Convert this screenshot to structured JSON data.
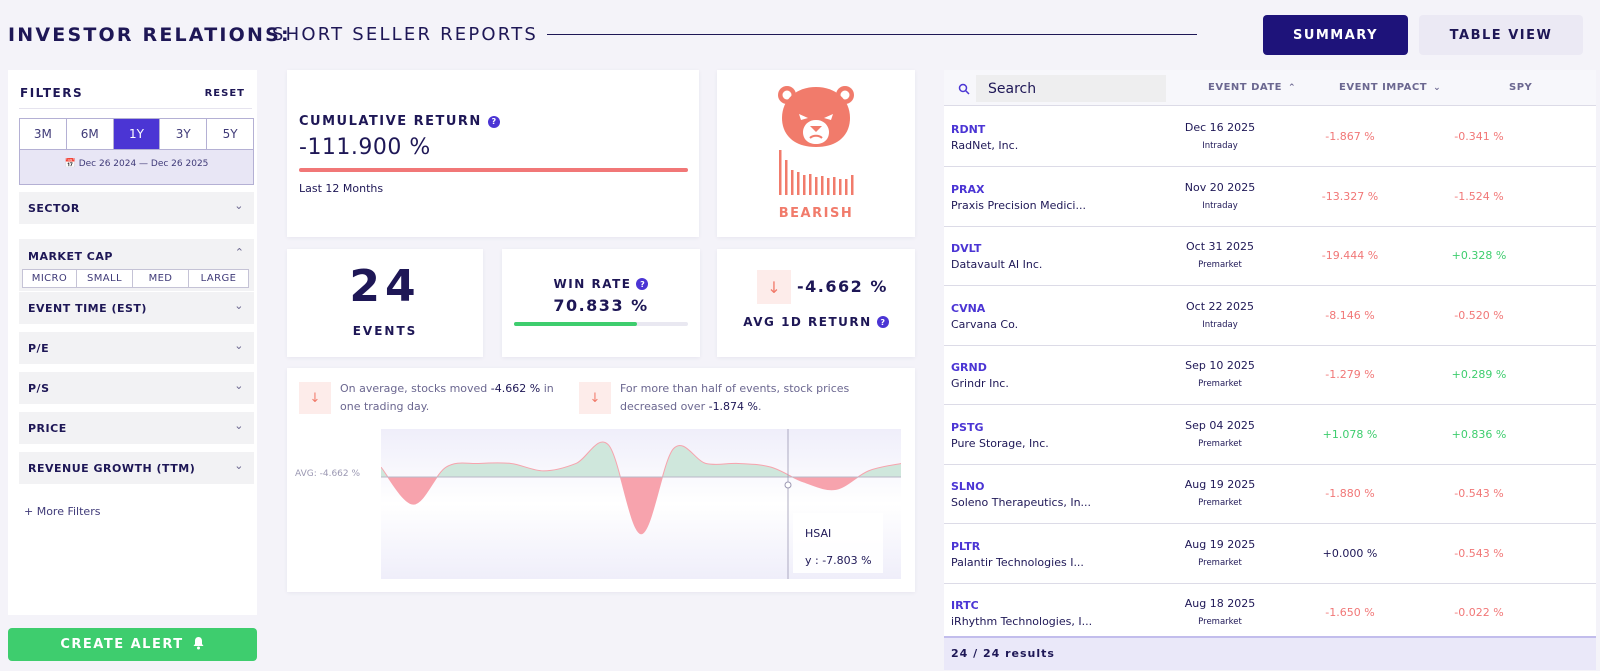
{
  "header": {
    "title": "INVESTOR RELATIONS:",
    "subtitle": "SHORT SELLER REPORTS",
    "summary_btn": "SUMMARY",
    "table_btn": "TABLE VIEW"
  },
  "filters": {
    "title": "FILTERS",
    "reset": "RESET",
    "periods": [
      "3M",
      "6M",
      "1Y",
      "3Y",
      "5Y"
    ],
    "active_period": "1Y",
    "date_range": "Dec 26 2024 — Dec 26 2025",
    "sector": "SECTOR",
    "market_cap": "MARKET CAP",
    "market_cap_options": [
      "MICRO",
      "SMALL",
      "MED",
      "LARGE"
    ],
    "event_time": "EVENT TIME (EST)",
    "pe": "P/E",
    "ps": "P/S",
    "price": "PRICE",
    "revenue_growth": "REVENUE GROWTH (TTM)",
    "more": "+ More Filters",
    "create_alert": "CREATE ALERT"
  },
  "cumulative": {
    "title": "CUMULATIVE RETURN",
    "value": "-111.900 %",
    "sub": "Last 12 Months"
  },
  "sentiment": {
    "label": "BEARISH",
    "color": "#f17b6b"
  },
  "events": {
    "count": "24",
    "label": "EVENTS"
  },
  "win_rate": {
    "title": "WIN RATE",
    "value": "70.833 %",
    "fraction": 0.70833
  },
  "avg_return": {
    "value": "-4.662 %",
    "label": "AVG 1D RETURN"
  },
  "insights": {
    "i1_pre": "On average, stocks moved ",
    "i1_val": "-4.662 %",
    "i1_post": " in one trading day.",
    "i2_pre": "For more than half of events, stock prices decreased over ",
    "i2_val": "-1.874 %",
    "i2_post": "."
  },
  "chart": {
    "avg_label": "AVG: -4.662 %",
    "tooltip_name": "HSAI",
    "tooltip_y": "y : -7.803 %"
  },
  "chart_data": {
    "type": "area",
    "title": "",
    "baseline_avg": -4.662,
    "values": [
      -2,
      -12,
      -2,
      -1,
      -1,
      -3,
      -1,
      4,
      -20,
      3,
      -1,
      -1,
      -2,
      -6,
      -8,
      -3,
      -1
    ],
    "tooltip": {
      "ticker": "HSAI",
      "y": -7.803
    }
  },
  "table": {
    "search_placeholder": "Search",
    "col_date": "EVENT DATE",
    "col_impact": "EVENT IMPACT",
    "col_spy": "SPY",
    "rows": [
      {
        "ticker": "RDNT",
        "company": "RadNet, Inc.",
        "date": "Dec 16 2025",
        "time": "Intraday",
        "impact": "-1.867 %",
        "spy": "-0.341 %"
      },
      {
        "ticker": "PRAX",
        "company": "Praxis Precision Medici...",
        "date": "Nov 20 2025",
        "time": "Intraday",
        "impact": "-13.327 %",
        "spy": "-1.524 %"
      },
      {
        "ticker": "DVLT",
        "company": "Datavault AI Inc.",
        "date": "Oct 31 2025",
        "time": "Premarket",
        "impact": "-19.444 %",
        "spy": "+0.328 %"
      },
      {
        "ticker": "CVNA",
        "company": "Carvana Co.",
        "date": "Oct 22 2025",
        "time": "Intraday",
        "impact": "-8.146 %",
        "spy": "-0.520 %"
      },
      {
        "ticker": "GRND",
        "company": "Grindr Inc.",
        "date": "Sep 10 2025",
        "time": "Premarket",
        "impact": "-1.279 %",
        "spy": "+0.289 %"
      },
      {
        "ticker": "PSTG",
        "company": "Pure Storage, Inc.",
        "date": "Sep 04 2025",
        "time": "Premarket",
        "impact": "+1.078 %",
        "spy": "+0.836 %"
      },
      {
        "ticker": "SLNO",
        "company": "Soleno Therapeutics, In...",
        "date": "Aug 19 2025",
        "time": "Premarket",
        "impact": "-1.880 %",
        "spy": "-0.543 %"
      },
      {
        "ticker": "PLTR",
        "company": "Palantir Technologies I...",
        "date": "Aug 19 2025",
        "time": "Premarket",
        "impact": "+0.000 %",
        "spy": "-0.543 %"
      },
      {
        "ticker": "IRTC",
        "company": "iRhythm Technologies, I...",
        "date": "Aug 18 2025",
        "time": "Premarket",
        "impact": "-1.650 %",
        "spy": "-0.022 %"
      }
    ],
    "results": "24 / 24 results"
  }
}
